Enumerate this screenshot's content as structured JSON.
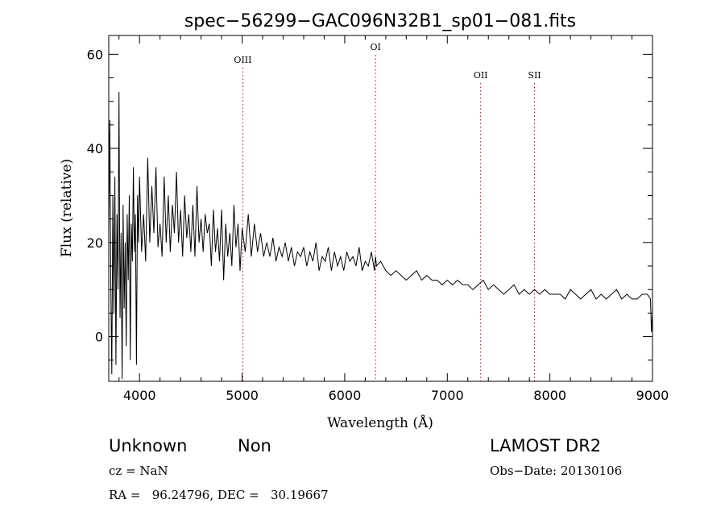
{
  "chart_data": {
    "type": "line",
    "title": "spec−56299−GAC096N32B1_sp01−081.fits",
    "xlabel": "Wavelength (Å)",
    "ylabel": "Flux (relative)",
    "xlim": [
      3700,
      9000
    ],
    "ylim": [
      -9.5,
      64
    ],
    "x_ticks": [
      4000,
      5000,
      6000,
      7000,
      8000,
      9000
    ],
    "y_ticks": [
      0,
      20,
      40,
      60
    ],
    "grid": false,
    "line_color": "#000000",
    "marker_color": "#d40000",
    "series": [
      {
        "values_x": [
          3700,
          3710,
          3720,
          3730,
          3740,
          3750,
          3760,
          3770,
          3780,
          3790,
          3800,
          3810,
          3820,
          3830,
          3840,
          3850,
          3860,
          3870,
          3880,
          3890,
          3900,
          3910,
          3920,
          3930,
          3940,
          3950,
          3960,
          3970,
          3980,
          3990,
          4000,
          4020,
          4040,
          4060,
          4080,
          4100,
          4120,
          4140,
          4160,
          4180,
          4200,
          4220,
          4240,
          4260,
          4280,
          4300,
          4320,
          4340,
          4360,
          4380,
          4400,
          4420,
          4440,
          4460,
          4480,
          4500,
          4520,
          4540,
          4560,
          4580,
          4600,
          4620,
          4640,
          4660,
          4680,
          4700,
          4720,
          4740,
          4760,
          4780,
          4800,
          4820,
          4840,
          4860,
          4880,
          4900,
          4920,
          4940,
          4960,
          4980,
          5000,
          5030,
          5060,
          5090,
          5120,
          5150,
          5180,
          5210,
          5240,
          5270,
          5300,
          5330,
          5360,
          5390,
          5420,
          5450,
          5480,
          5510,
          5540,
          5570,
          5600,
          5630,
          5660,
          5690,
          5720,
          5750,
          5780,
          5810,
          5840,
          5870,
          5900,
          5930,
          5960,
          5990,
          6020,
          6050,
          6080,
          6110,
          6140,
          6170,
          6200,
          6230,
          6260,
          6290,
          6300,
          6310,
          6350,
          6400,
          6450,
          6500,
          6550,
          6600,
          6650,
          6700,
          6750,
          6800,
          6850,
          6900,
          6950,
          7000,
          7050,
          7100,
          7150,
          7200,
          7250,
          7300,
          7350,
          7400,
          7450,
          7500,
          7550,
          7600,
          7650,
          7700,
          7750,
          7800,
          7850,
          7900,
          7950,
          8000,
          8050,
          8100,
          8150,
          8200,
          8250,
          8300,
          8350,
          8400,
          8450,
          8500,
          8550,
          8600,
          8650,
          8700,
          8750,
          8800,
          8850,
          8900,
          8950,
          8980,
          8990,
          9000
        ],
        "values_y": [
          22,
          46,
          12,
          -8,
          30,
          5,
          34,
          -6,
          26,
          10,
          52,
          4,
          22,
          -9,
          28,
          6,
          20,
          -2,
          26,
          12,
          30,
          -5,
          24,
          16,
          36,
          18,
          26,
          -6,
          30,
          20,
          34,
          18,
          26,
          16,
          38,
          20,
          32,
          22,
          36,
          19,
          24,
          17,
          34,
          20,
          30,
          18,
          28,
          22,
          35,
          20,
          27,
          17,
          30,
          21,
          26,
          18,
          28,
          17,
          32,
          20,
          25,
          18,
          26,
          22,
          24,
          15,
          27,
          18,
          23,
          16,
          27,
          12,
          24,
          17,
          22,
          15,
          28,
          19,
          24,
          14,
          23,
          18,
          26,
          17,
          24,
          18,
          22,
          17,
          20,
          17,
          21,
          16,
          19,
          17,
          20,
          16,
          19,
          15,
          18,
          17,
          19,
          15,
          18,
          16,
          20,
          14,
          17,
          16,
          19,
          14,
          18,
          15,
          17,
          14,
          18,
          16,
          17,
          15,
          19,
          14,
          16,
          15,
          18,
          14,
          17,
          15,
          16,
          14,
          13,
          14,
          13,
          12,
          13,
          14,
          12,
          13,
          12,
          12,
          11,
          12,
          11,
          12,
          11,
          11,
          10,
          11,
          12,
          10,
          11,
          10,
          9,
          10,
          11,
          9,
          10,
          9,
          10,
          9,
          10,
          9,
          9,
          9,
          8,
          10,
          9,
          8,
          9,
          10,
          8,
          9,
          8,
          9,
          10,
          8,
          9,
          8,
          8,
          9,
          9,
          8,
          1,
          5
        ]
      }
    ],
    "line_markers": [
      {
        "label": "OIII",
        "x": 5007
      },
      {
        "label": "OI",
        "x": 6300
      },
      {
        "label": "OII",
        "x": 7325
      },
      {
        "label": "SII",
        "x": 7850
      }
    ]
  },
  "info": {
    "object_class": "Unknown",
    "object_subclass": "Non",
    "survey": "LAMOST DR2",
    "redshift": "cz = NaN",
    "obs_date": "Obs−Date: 20130106",
    "coordinates": "RA =   96.24796, DEC =   30.19667"
  }
}
